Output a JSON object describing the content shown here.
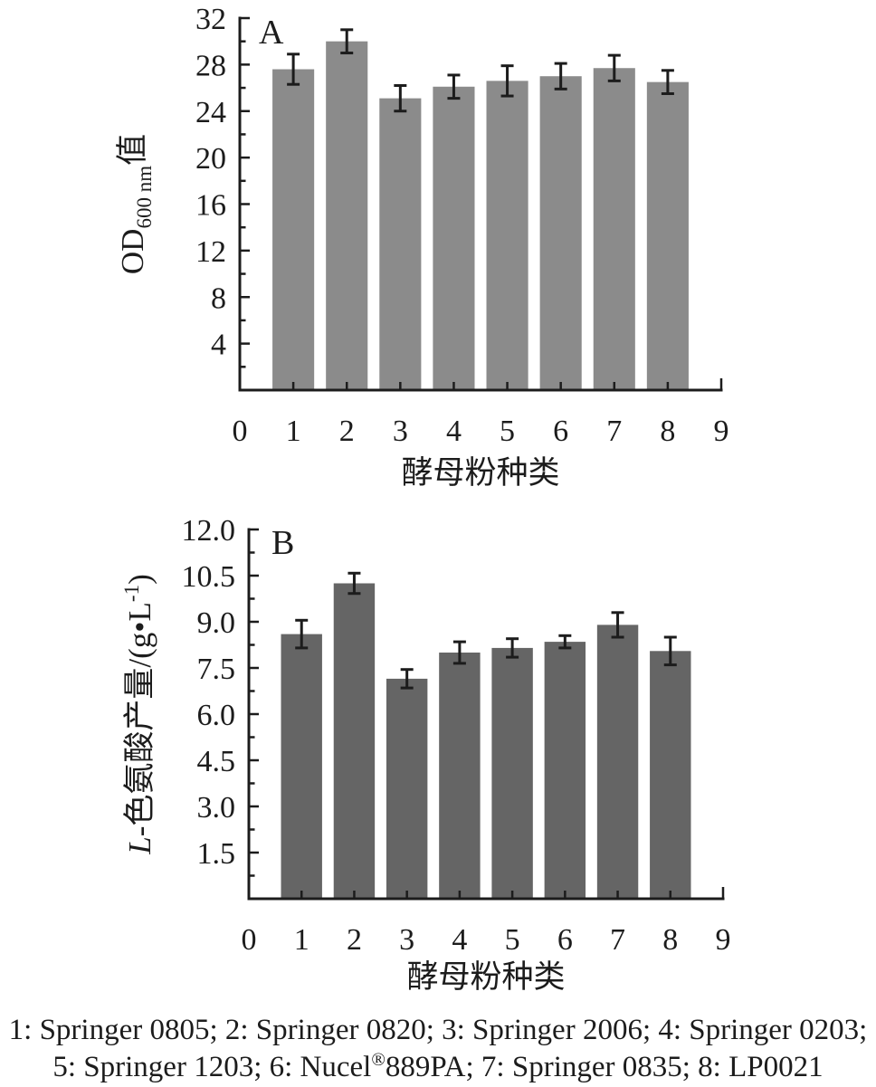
{
  "caption": {
    "line1": "1: Springer 0805; 2: Springer 0820; 3: Springer 2006; 4: Springer 0203;",
    "line2_pre": "5: Springer 1203; 6: Nucel",
    "line2_sup": "®",
    "line2_post": "889PA; 7: Springer 0835; 8: LP0021"
  },
  "chart_data": [
    {
      "type": "bar",
      "panel_label": "A",
      "xlabel": "酵母粉种类",
      "ylabel": "OD600 nm值",
      "ylabel_parts": [
        {
          "text": "OD"
        },
        {
          "text": "600 nm",
          "script": "sub"
        },
        {
          "text": "值"
        }
      ],
      "x": [
        1,
        2,
        3,
        4,
        5,
        6,
        7,
        8
      ],
      "values": [
        27.6,
        30.0,
        25.1,
        26.1,
        26.6,
        27.0,
        27.7,
        26.5
      ],
      "errors": [
        1.3,
        1.0,
        1.1,
        1.0,
        1.3,
        1.1,
        1.1,
        1.0
      ],
      "xlim": [
        0,
        9
      ],
      "ylim": [
        0,
        32
      ],
      "xticks": {
        "values": [
          0,
          1,
          2,
          3,
          4,
          5,
          6,
          7,
          8,
          9
        ],
        "labels": [
          "0",
          "1",
          "2",
          "3",
          "4",
          "5",
          "6",
          "7",
          "8",
          "9"
        ]
      },
      "yticks": {
        "values": [
          4,
          8,
          12,
          16,
          20,
          24,
          28,
          32
        ],
        "labels": [
          "4",
          "8",
          "12",
          "16",
          "20",
          "24",
          "28",
          "32"
        ]
      },
      "yticks_minor": [
        2,
        6,
        10,
        14,
        18,
        22,
        26,
        30
      ],
      "grid": false,
      "legend": "none",
      "bar_color": "#8b8b8b",
      "axis_color": "#1c1c1c"
    },
    {
      "type": "bar",
      "panel_label": "B",
      "xlabel": "酵母粉种类",
      "ylabel": "L-色氨酸产量/(g•L-1)",
      "ylabel_parts": [
        {
          "text": "L",
          "italic": true
        },
        {
          "text": "-色氨酸产量/(g•L"
        },
        {
          "text": "-1",
          "script": "sup"
        },
        {
          "text": ")"
        }
      ],
      "x": [
        1,
        2,
        3,
        4,
        5,
        6,
        7,
        8
      ],
      "values": [
        8.6,
        10.25,
        7.15,
        8.0,
        8.15,
        8.35,
        8.9,
        8.05
      ],
      "errors": [
        0.45,
        0.33,
        0.3,
        0.35,
        0.3,
        0.2,
        0.4,
        0.45
      ],
      "xlim": [
        0,
        9
      ],
      "ylim": [
        0,
        12
      ],
      "xticks": {
        "values": [
          0,
          1,
          2,
          3,
          4,
          5,
          6,
          7,
          8,
          9
        ],
        "labels": [
          "0",
          "1",
          "2",
          "3",
          "4",
          "5",
          "6",
          "7",
          "8",
          "9"
        ]
      },
      "yticks": {
        "values": [
          1.5,
          3.0,
          4.5,
          6.0,
          7.5,
          9.0,
          10.5,
          12.0
        ],
        "labels": [
          "1.5",
          "3.0",
          "4.5",
          "6.0",
          "7.5",
          "9.0",
          "10.5",
          "12.0"
        ]
      },
      "yticks_minor": [
        0.75,
        2.25,
        3.75,
        5.25,
        6.75,
        8.25,
        9.75,
        11.25
      ],
      "grid": false,
      "legend": "none",
      "bar_color": "#656565",
      "axis_color": "#1c1c1c"
    }
  ]
}
